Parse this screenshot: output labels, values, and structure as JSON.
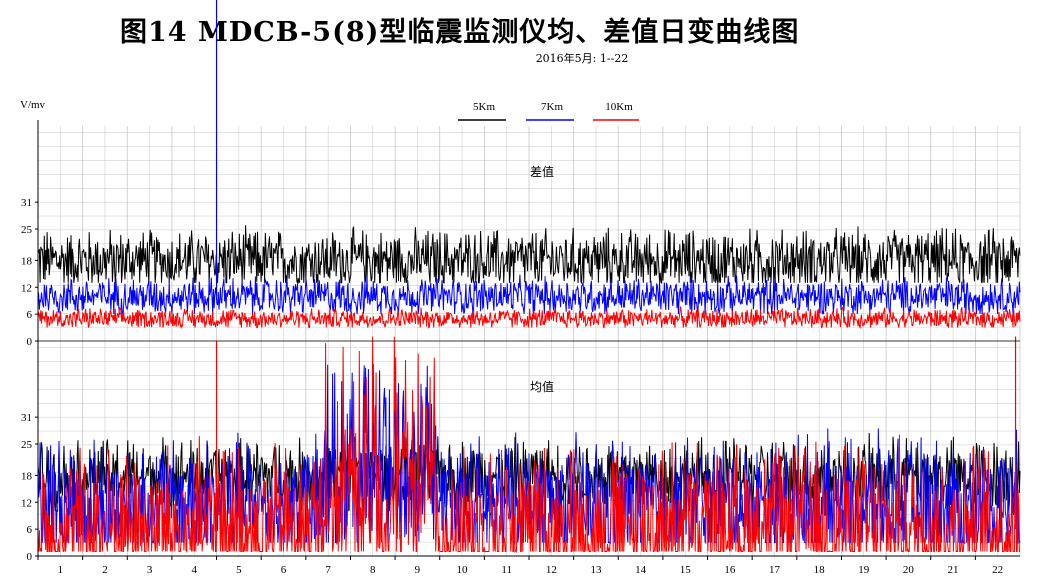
{
  "title": "图14  MDCB-5(8)型临震监测仪均、差值日变曲线图",
  "subtitle": "2016年5月: 1--22",
  "colors": {
    "5Km": "#000000",
    "7Km": "#0000ff",
    "10Km": "#ff0000",
    "grid": "#c8c8c8"
  },
  "chart_data": {
    "type": "line",
    "ylabel": "V/mv",
    "legend": [
      {
        "name": "5Km",
        "color": "#000000"
      },
      {
        "name": "7Km",
        "color": "#0000ff"
      },
      {
        "name": "10Km",
        "color": "#ff0000"
      }
    ],
    "x_ticks": [
      "1",
      "2",
      "3",
      "4",
      "5",
      "6",
      "7",
      "8",
      "9",
      "10",
      "11",
      "12",
      "13",
      "14",
      "15",
      "16",
      "17",
      "18",
      "19",
      "20",
      "21",
      "22"
    ],
    "xlim": [
      0,
      22
    ],
    "panels": [
      {
        "label": "差值",
        "y_ticks": [
          "0",
          "6",
          "12",
          "18",
          "25",
          "31"
        ],
        "y_tick_values": [
          0,
          6,
          12,
          18,
          25,
          31
        ],
        "ylim": [
          0,
          48
        ],
        "series": [
          {
            "name": "5Km",
            "mean": 18,
            "range": [
              13,
              31
            ]
          },
          {
            "name": "7Km",
            "mean": 10,
            "range": [
              6,
              17
            ]
          },
          {
            "name": "10Km",
            "mean": 5,
            "range": [
              3,
              9
            ]
          }
        ],
        "spikes": [
          {
            "series": "7Km",
            "day": 4.0,
            "value": 80
          }
        ]
      },
      {
        "label": "均值",
        "y_ticks": [
          "0",
          "6",
          "12",
          "18",
          "25",
          "31"
        ],
        "y_tick_values": [
          0,
          6,
          12,
          18,
          25,
          31
        ],
        "ylim": [
          0,
          48
        ],
        "series": [
          {
            "name": "5Km",
            "mean": 18,
            "range": [
              10,
              31
            ]
          },
          {
            "name": "7Km",
            "mean": 11,
            "range": [
              3,
              43
            ]
          },
          {
            "name": "10Km",
            "mean": 6,
            "range": [
              1,
              49
            ]
          }
        ],
        "spikes": [
          {
            "series": "10Km",
            "day": 4.0,
            "value": 48
          },
          {
            "series": "10Km",
            "day": 21.9,
            "value": 49
          }
        ]
      }
    ]
  }
}
